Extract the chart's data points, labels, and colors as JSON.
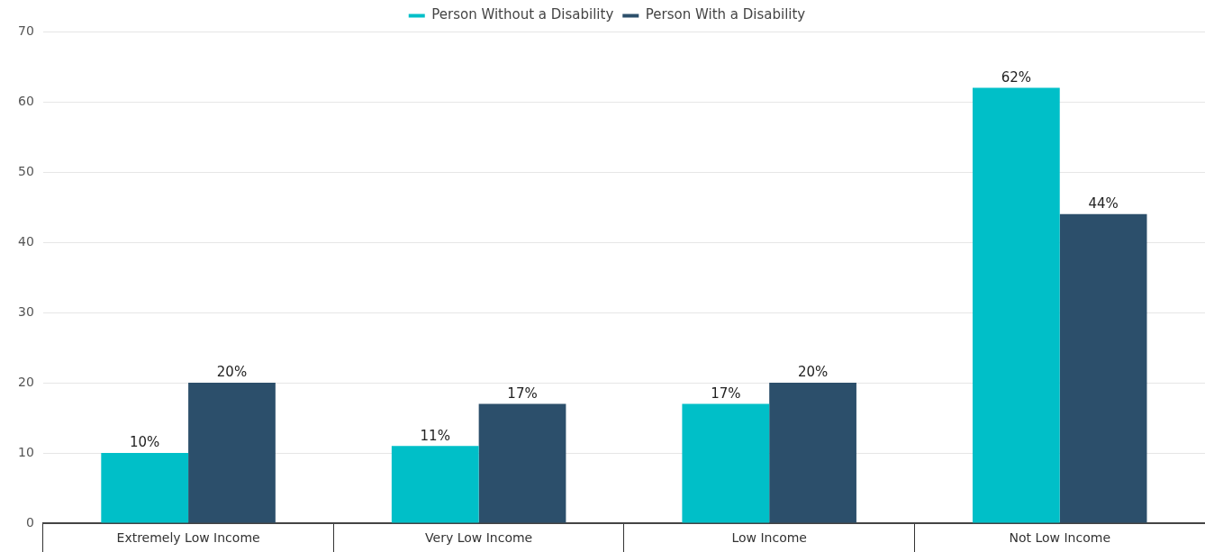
{
  "chart_data": {
    "type": "bar",
    "categories": [
      "Extremely Low Income",
      "Very Low Income",
      "Low Income",
      "Not Low Income"
    ],
    "series": [
      {
        "name": "Person Without a Disability",
        "color": "#00bfc8",
        "values": [
          10,
          11,
          17,
          62
        ],
        "value_labels": [
          "10%",
          "11%",
          "17%",
          "62%"
        ]
      },
      {
        "name": "Person With a Disability",
        "color": "#2c4f6b",
        "values": [
          20,
          17,
          20,
          44
        ],
        "value_labels": [
          "20%",
          "17%",
          "20%",
          "44%"
        ]
      }
    ],
    "ylim": [
      0,
      70
    ],
    "yticks": [
      0,
      10,
      20,
      30,
      40,
      50,
      60,
      70
    ],
    "grid": "y",
    "legend": "top"
  }
}
